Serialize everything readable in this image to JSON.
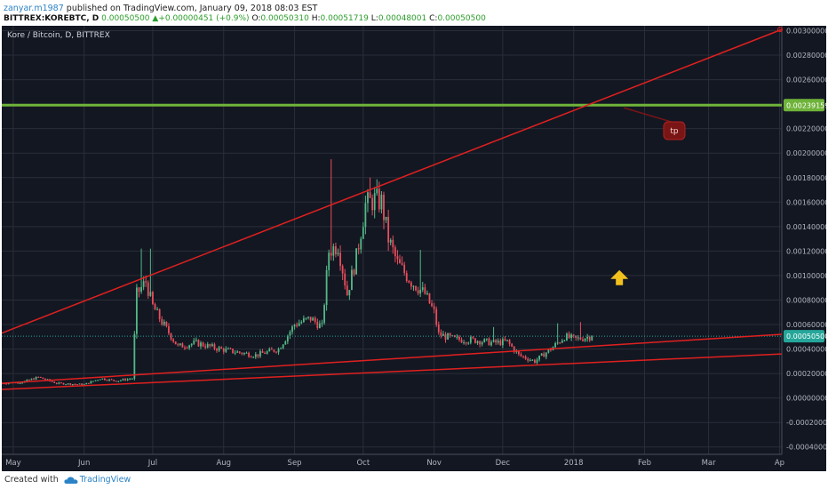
{
  "header": {
    "author": "zanyar.m1987",
    "published_text": " published on TradingView.com, January 09, 2018 08:03 EST",
    "ticker": "BITTREX:KOREBTC, D",
    "price": "0.00050500",
    "change_arrow": "▲",
    "change": "+0.00000451 (+0.9%)",
    "o_label": "O:",
    "o": "0.00050310",
    "h_label": "H:",
    "h": "0.00051719",
    "l_label": "L:",
    "l": "0.00048001",
    "c_label": "C:",
    "c": "0.00050500"
  },
  "footer": {
    "created_with": "Created with",
    "brand": "TradingView",
    "logo_icon": "tradingview-cloud-icon"
  },
  "colors": {
    "background": "#131722",
    "grid": "#2a2e39",
    "up_candle": "#53b987",
    "down_candle": "#eb4d5c",
    "trendline": "#e0201f",
    "horizontal_line": "#6fb33a",
    "current_price_line": "#26a69a",
    "arrow": "#f2c11d",
    "tp_callout": "#7a1515"
  },
  "chart_data": {
    "type": "candlestick",
    "title": "Kore / Bitcoin, D, BITTREX",
    "xlabel": "",
    "ylabel": "",
    "x_tick_labels": [
      "May",
      "Jun",
      "Jul",
      "Aug",
      "Sep",
      "Oct",
      "Nov",
      "Dec",
      "2018",
      "Feb",
      "Mar",
      "Ap"
    ],
    "x_ticks": [
      "2017-05-01",
      "2017-06-01",
      "2017-07-01",
      "2017-08-01",
      "2017-09-01",
      "2017-10-01",
      "2017-11-01",
      "2017-12-01",
      "2018-01-01",
      "2018-02-01",
      "2018-03-01",
      "2018-04-01"
    ],
    "x_range": [
      "2017-04-26",
      "2018-04-02"
    ],
    "y_tick_labels": [
      "0.00300000",
      "0.00280000",
      "0.00260000",
      "0.00220000",
      "0.00200000",
      "0.00180000",
      "0.00160000",
      "0.00140000",
      "0.00120000",
      "0.00100000",
      "0.00080000",
      "0.00060000",
      "0.00040000",
      "0.00020000",
      "0.00000000",
      "-0.00020000",
      "-0.00040000"
    ],
    "y_ticks": [
      0.003,
      0.0028,
      0.0026,
      0.0022,
      0.002,
      0.0018,
      0.0016,
      0.0014,
      0.0012,
      0.001,
      0.0008,
      0.0006,
      0.0004,
      0.0002,
      0.0,
      -0.0002,
      -0.0004
    ],
    "ylim": [
      -0.00046,
      0.00304
    ],
    "grid": true,
    "price_path": [
      [
        "2017-04-26",
        0.00012
      ],
      [
        "2017-05-05",
        0.00013
      ],
      [
        "2017-05-12",
        0.00017
      ],
      [
        "2017-05-20",
        0.00012
      ],
      [
        "2017-06-01",
        0.00011
      ],
      [
        "2017-06-08",
        0.00016
      ],
      [
        "2017-06-15",
        0.00014
      ],
      [
        "2017-06-22",
        0.00016
      ],
      [
        "2017-06-24",
        0.00085
      ],
      [
        "2017-06-28",
        0.00095
      ],
      [
        "2017-07-01",
        0.00075
      ],
      [
        "2017-07-05",
        0.00062
      ],
      [
        "2017-07-12",
        0.00042
      ],
      [
        "2017-07-20",
        0.00045
      ],
      [
        "2017-07-28",
        0.00041
      ],
      [
        "2017-08-05",
        0.00038
      ],
      [
        "2017-08-15",
        0.00035
      ],
      [
        "2017-08-25",
        0.0004
      ],
      [
        "2017-09-01",
        0.0006
      ],
      [
        "2017-09-08",
        0.00065
      ],
      [
        "2017-09-13",
        0.00058
      ],
      [
        "2017-09-16",
        0.0012
      ],
      [
        "2017-09-20",
        0.00125
      ],
      [
        "2017-09-24",
        0.00085
      ],
      [
        "2017-09-28",
        0.00115
      ],
      [
        "2017-10-02",
        0.00158
      ],
      [
        "2017-10-06",
        0.00162
      ],
      [
        "2017-10-09",
        0.0016
      ],
      [
        "2017-10-12",
        0.0013
      ],
      [
        "2017-10-16",
        0.0011
      ],
      [
        "2017-10-22",
        0.00095
      ],
      [
        "2017-10-28",
        0.00085
      ],
      [
        "2017-11-01",
        0.0007
      ],
      [
        "2017-11-03",
        0.00052
      ],
      [
        "2017-11-10",
        0.00048
      ],
      [
        "2017-11-20",
        0.00047
      ],
      [
        "2017-11-27",
        0.00045
      ],
      [
        "2017-12-03",
        0.00046
      ],
      [
        "2017-12-08",
        0.00035
      ],
      [
        "2017-12-15",
        0.0003
      ],
      [
        "2017-12-22",
        0.0004
      ],
      [
        "2017-12-28",
        0.0005
      ],
      [
        "2018-01-02",
        0.00048
      ],
      [
        "2018-01-09",
        0.000505
      ]
    ],
    "high_spikes": [
      [
        "2017-06-26",
        0.00122
      ],
      [
        "2017-06-30",
        0.00122
      ],
      [
        "2017-09-17",
        0.00195
      ],
      [
        "2017-10-04",
        0.0018
      ],
      [
        "2017-10-26",
        0.00121
      ],
      [
        "2017-11-27",
        0.00058
      ],
      [
        "2017-12-25",
        0.00061
      ],
      [
        "2018-01-04",
        0.00062
      ]
    ],
    "current_price": 0.000505,
    "current_price_label": "0.00050500",
    "horizontal_line": {
      "value": 0.00239159,
      "label": "0.00239159"
    },
    "trendlines": [
      {
        "from": [
          "2017-04-26",
          0.00053
        ],
        "to": [
          "2018-04-02",
          0.00301
        ]
      },
      {
        "from": [
          "2017-04-26",
          0.00012
        ],
        "to": [
          "2018-04-02",
          0.00052
        ]
      },
      {
        "from": [
          "2017-04-26",
          7e-05
        ],
        "to": [
          "2018-04-02",
          0.00036
        ]
      }
    ],
    "annotations": [
      {
        "type": "callout",
        "text": "tp",
        "anchor": [
          "2018-01-23",
          0.00237
        ],
        "at": [
          "2018-02-14",
          0.00219
        ]
      },
      {
        "type": "arrow-up",
        "at": [
          "2018-01-21",
          0.00098
        ]
      }
    ]
  }
}
